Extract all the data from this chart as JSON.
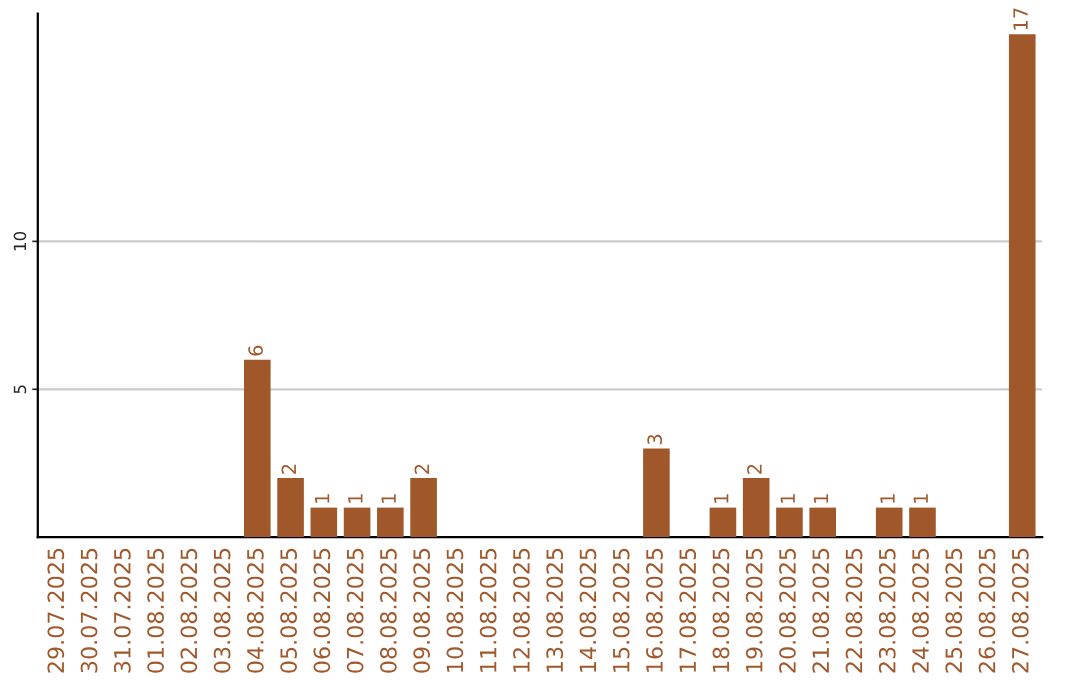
{
  "chart_data": {
    "type": "bar",
    "categories": [
      "29.07.2025",
      "30.07.2025",
      "31.07.2025",
      "01.08.2025",
      "02.08.2025",
      "03.08.2025",
      "04.08.2025",
      "05.08.2025",
      "06.08.2025",
      "07.08.2025",
      "08.08.2025",
      "09.08.2025",
      "10.08.2025",
      "11.08.2025",
      "12.08.2025",
      "13.08.2025",
      "14.08.2025",
      "15.08.2025",
      "16.08.2025",
      "17.08.2025",
      "18.08.2025",
      "19.08.2025",
      "20.08.2025",
      "21.08.2025",
      "22.08.2025",
      "23.08.2025",
      "24.08.2025",
      "25.08.2025",
      "26.08.2025",
      "27.08.2025"
    ],
    "values": [
      0,
      0,
      0,
      0,
      0,
      0,
      6,
      2,
      1,
      1,
      1,
      2,
      0,
      0,
      0,
      0,
      0,
      0,
      3,
      0,
      1,
      2,
      1,
      1,
      0,
      1,
      1,
      0,
      0,
      17
    ],
    "value_labels": [
      null,
      null,
      null,
      null,
      null,
      null,
      "6",
      "2",
      "1",
      "1",
      "1",
      "2",
      null,
      null,
      null,
      null,
      null,
      null,
      "3",
      null,
      "1",
      "2",
      "1",
      "1",
      null,
      "1",
      "1",
      null,
      null,
      "17"
    ],
    "color": "#a0582b",
    "ylim": [
      0,
      17.7
    ],
    "yticks": [
      5,
      10
    ],
    "grid": "y",
    "legend": false
  }
}
